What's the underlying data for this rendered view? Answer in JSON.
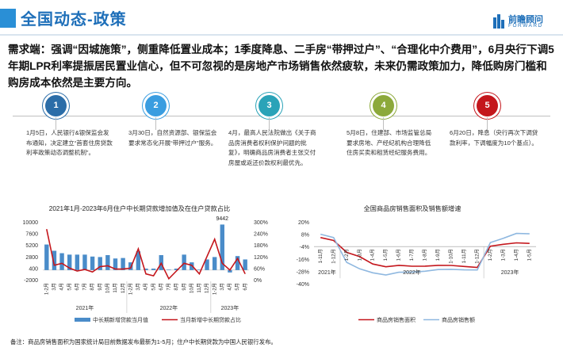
{
  "header": {
    "title": "全国动态-政策",
    "logo_cn": "前瞻顾问",
    "logo_en": "FORWARD"
  },
  "headline": "需求端：强调“因城施策”，侧重降低置业成本；1季度降息、二手房“带押过户”、“合理化中介费用”，6月央行下调5年期LPR利率提振居民置业信心，但不可忽视的是房地产市场销售依然疲软，未来仍需政策加力，降低购房门槛和购房成本依然是主要方向。",
  "timeline": [
    {
      "number": "1",
      "color": "#2b6da8",
      "text": "1月5日，人民银行&银保监会发布通知，决定建立“首套住房贷款利率政策动态调整机制”。"
    },
    {
      "number": "2",
      "color": "#3a9de0",
      "text": "3月30日，自然资源部、银保监会要求常态化开展“带押过户”服务。"
    },
    {
      "number": "3",
      "color": "#2aa3b8",
      "text": "4月，最高人民法院做出《关于商品房消费者权利保护问题的批复》，明确商品房消费者主张交付房屋或返还价款权利最优先。"
    },
    {
      "number": "4",
      "color": "#8ca93a",
      "text": "5月8日，住建部、市场监管总局要求房地、产经纪机构合理降低住房买卖和租赁经纪服务费用。"
    },
    {
      "number": "5",
      "color": "#c4161c",
      "text": "6月20日，降息（央行再次下调贷款利率，下调幅度为10个基点）。"
    }
  ],
  "chart_data": [
    {
      "type": "bar",
      "title": "2021年1月-2023年6月住户中长期贷款增加值及在住户贷款占比",
      "categories": [
        "1-2月",
        "3月",
        "4月",
        "5月",
        "6月",
        "7月",
        "8月",
        "9月",
        "10月",
        "11月",
        "12月",
        "1-2月",
        "3月",
        "4月",
        "5月",
        "6月",
        "7月",
        "8月",
        "9月",
        "10月",
        "11月",
        "12月",
        "1-2月",
        "3月",
        "4月",
        "5月",
        "6月"
      ],
      "x_groups": [
        "2021年",
        "2022年",
        "2023年"
      ],
      "series": [
        {
          "name": "中长期新增贷款当月值",
          "color": "#4a8cc9",
          "axis": "left",
          "values": [
            5300,
            4000,
            3500,
            3200,
            3200,
            3200,
            2800,
            2700,
            3100,
            2400,
            2500,
            1600,
            3900,
            300,
            300,
            3100,
            100,
            300,
            3200,
            1600,
            100,
            2200,
            2700,
            9442,
            -500,
            2900,
            2200
          ]
        },
        {
          "name": "当月新增中长期贷款占比",
          "color": "#c4161c",
          "axis": "right",
          "values": [
            262,
            75,
            85,
            60,
            45,
            53,
            40,
            68,
            72,
            55,
            55,
            60,
            160,
            30,
            20,
            85,
            5,
            45,
            85,
            75,
            30,
            120,
            210,
            85,
            50,
            110,
            30
          ]
        }
      ],
      "left_axis_ticks": [
        "10000",
        "7600",
        "5200",
        "2800",
        "400",
        "-2000"
      ],
      "right_axis_ticks": [
        "300%",
        "240%",
        "180%",
        "120%",
        "60%",
        "0%"
      ],
      "ylim_left": [
        -2000,
        10000
      ],
      "ylim_right": [
        0,
        300
      ],
      "annotation": "9442"
    },
    {
      "type": "line",
      "title": "全国商品房销售面积及销售额增速",
      "categories": [
        "1-11月",
        "1-12月",
        "1-2月",
        "1-3月",
        "1-4月",
        "1-5月",
        "1-6月",
        "1-7月",
        "1-8月",
        "1-9月",
        "1-10月",
        "1-11月",
        "1-12月",
        "1-2月",
        "1-3月",
        "1-4月",
        "1-5月"
      ],
      "x_groups": [
        "2021年",
        "2022年",
        "2023年"
      ],
      "series": [
        {
          "name": "商品房销售面积",
          "color": "#c4161c",
          "values": [
            4.8,
            1.9,
            -9.6,
            -13.8,
            -20.9,
            -23.6,
            -22.2,
            -23.1,
            -23.0,
            -22.2,
            -22.3,
            -23.3,
            -24.3,
            -3.6,
            -1.8,
            -0.4,
            -0.9
          ]
        },
        {
          "name": "商品房销售额",
          "color": "#8fb8e0",
          "values": [
            8.0,
            4.8,
            -19.3,
            -25.6,
            -29.5,
            -31.5,
            -28.9,
            -28.8,
            -27.9,
            -26.3,
            -26.1,
            -26.6,
            -26.7,
            -0.1,
            4.1,
            8.8,
            8.4
          ]
        }
      ],
      "y_axis_ticks": [
        "20%",
        "8%",
        "-4%",
        "-16%",
        "-28%",
        "-40%"
      ],
      "ylim": [
        -40,
        20
      ]
    }
  ],
  "footnote": "备注：商品房销售面积为国家统计局目前数据发布最新为1-5月；住户中长期贷款为中国人民银行发布。"
}
